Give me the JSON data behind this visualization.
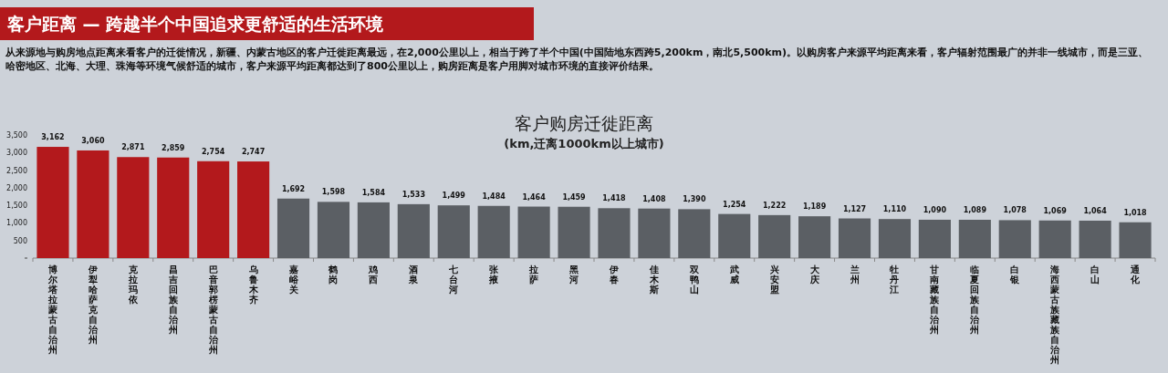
{
  "chart_data": {
    "type": "bar",
    "title": "客户购房迁徙距离",
    "subtitle": "(km,迁离1000km以上城市)",
    "annotations": [
      "客户距离 — 跨越半个中国追求更舒适的生活环境",
      "从来源地与购房地点距离来看客户的迁徙情况，新疆、内蒙古地区的客户迁徙距离最远，在2,000公里以上，相当于跨了半个中国(中国陆地东西跨5,200km，南北5,500km)。以购房客户来源平均距离来看，客户辐射范围最广的并非一线城市，而是三亚、哈密地区、北海、大理、珠海等环境气候舒适的城市，客户来源平均距离都达到了800公里以上，购房距离是客户用脚对城市环境的直接评价结果。"
    ],
    "categories": [
      "博尔塔拉蒙古自治州",
      "伊犁哈萨克自治州",
      "克拉玛依",
      "昌吉回族自治州",
      "巴音郭楞蒙古自治州",
      "乌鲁木齐",
      "嘉峪关",
      "鹤岗",
      "鸡西",
      "酒泉",
      "七台河",
      "张掖",
      "拉萨",
      "黑河",
      "伊春",
      "佳木斯",
      "双鸭山",
      "武威",
      "兴安盟",
      "大庆",
      "兰州",
      "牡丹江",
      "甘南藏族自治州",
      "临夏回族自治州",
      "白银",
      "海西蒙古族藏族自治州",
      "白山",
      "通化"
    ],
    "values": [
      3162,
      3060,
      2871,
      2859,
      2754,
      2747,
      1692,
      1598,
      1584,
      1533,
      1499,
      1484,
      1464,
      1459,
      1418,
      1408,
      1390,
      1254,
      1222,
      1189,
      1127,
      1110,
      1090,
      1089,
      1078,
      1069,
      1064,
      1018
    ],
    "value_labels": [
      "3,162",
      "3,060",
      "2,871",
      "2,859",
      "2,754",
      "2,747",
      "1,692",
      "1,598",
      "1,584",
      "1,533",
      "1,499",
      "1,484",
      "1,464",
      "1,459",
      "1,418",
      "1,408",
      "1,390",
      "1,254",
      "1,222",
      "1,189",
      "1,127",
      "1,110",
      "1,090",
      "1,089",
      "1,078",
      "1,069",
      "1,064",
      "1,018"
    ],
    "colors": [
      "#b3191c",
      "#b3191c",
      "#b3191c",
      "#b3191c",
      "#b3191c",
      "#b3191c",
      "#5b5f64",
      "#5b5f64",
      "#5b5f64",
      "#5b5f64",
      "#5b5f64",
      "#5b5f64",
      "#5b5f64",
      "#5b5f64",
      "#5b5f64",
      "#5b5f64",
      "#5b5f64",
      "#5b5f64",
      "#5b5f64",
      "#5b5f64",
      "#5b5f64",
      "#5b5f64",
      "#5b5f64",
      "#5b5f64",
      "#5b5f64",
      "#5b5f64",
      "#5b5f64",
      "#5b5f64"
    ],
    "ylim": [
      0,
      3500
    ],
    "yticks": [
      {
        "value": 0,
        "label": null
      },
      {
        "value": 500,
        "label": "500"
      },
      {
        "value": 1000,
        "label": "1,000"
      },
      {
        "value": 1500,
        "label": "1,500"
      },
      {
        "value": 2000,
        "label": "2,000"
      },
      {
        "value": 2500,
        "label": "2,500"
      },
      {
        "value": 3000,
        "label": "3,000"
      },
      {
        "value": 3500,
        "label": "3,500"
      }
    ],
    "grid": false
  }
}
